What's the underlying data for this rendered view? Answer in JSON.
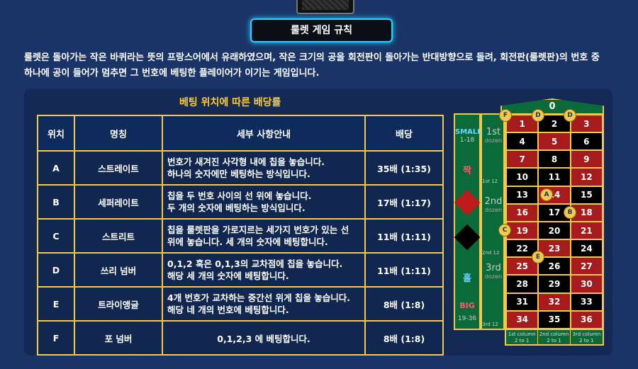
{
  "header": {
    "title": "룰렛 게임 규칙"
  },
  "intro": {
    "line1": "룰렛은 돌아가는 작은 바퀴라는 뜻의 프랑스어에서 유래하였으며, 작은 크기의 공을 회전판이 돌아가는 반대방향으로 돌려, 회전판(룰렛판)의 번호 중",
    "line2": "하나에 공이 들어가 멈추면 그 번호에 베팅한 플레이어가 이기는 게임입니다."
  },
  "table": {
    "title": "베팅 위치에 따른 배당률",
    "headers": [
      "위치",
      "명칭",
      "세부 사항안내",
      "배당"
    ],
    "rows": [
      {
        "pos": "A",
        "name": "스트레이트",
        "desc1": "번호가 새겨진 사각형 내에 칩을 놓습니다.",
        "desc2": "하나의 숫자에만 베팅하는 방식입니다.",
        "payout": "35배 (1:35)"
      },
      {
        "pos": "B",
        "name": "세퍼레이트",
        "desc1": "칩을 두 번호 사이의 선 위에 놓습니다.",
        "desc2": "두 개의 숫자에 베팅하는 방식입니다.",
        "payout": "17배 (1:17)"
      },
      {
        "pos": "C",
        "name": "스트리트",
        "desc1": "칩을 룰렛판을 가로지르는 세가지 번호가 있는 선",
        "desc2": "위에 놓습니다. 세 개의 숫자에 베팅합니다.",
        "payout": "11배 (1:11)"
      },
      {
        "pos": "D",
        "name": "쓰리 넘버",
        "desc1": "0,1,2 혹은 0,1,3의 교차점에 칩을 놓습니다.",
        "desc2": "해당 세 개의 숫자에 베팅합니다.",
        "payout": "11배 (1:11)"
      },
      {
        "pos": "E",
        "name": "트라이앵글",
        "desc1": "4개 번호가 교차하는 중간선 위게 칩을 놓습니다.",
        "desc2": "해당 네 개의 번호에 베팅합니다.",
        "payout": "8배 (1:8)"
      },
      {
        "pos": "F",
        "name": "포 넘버",
        "desc1": "0,1,2,3 에 베팅합니다.",
        "desc2": "",
        "payout": "8배 (1:8)"
      }
    ]
  },
  "board": {
    "zero": "0",
    "cells": [
      {
        "n": "1",
        "c": "red"
      },
      {
        "n": "2",
        "c": "black"
      },
      {
        "n": "3",
        "c": "red"
      },
      {
        "n": "4",
        "c": "black"
      },
      {
        "n": "5",
        "c": "red"
      },
      {
        "n": "6",
        "c": "black"
      },
      {
        "n": "7",
        "c": "red"
      },
      {
        "n": "8",
        "c": "black"
      },
      {
        "n": "9",
        "c": "red"
      },
      {
        "n": "10",
        "c": "black"
      },
      {
        "n": "11",
        "c": "black"
      },
      {
        "n": "12",
        "c": "red"
      },
      {
        "n": "13",
        "c": "black"
      },
      {
        "n": "14",
        "c": "red"
      },
      {
        "n": "15",
        "c": "black"
      },
      {
        "n": "16",
        "c": "red"
      },
      {
        "n": "17",
        "c": "black"
      },
      {
        "n": "18",
        "c": "red"
      },
      {
        "n": "19",
        "c": "red"
      },
      {
        "n": "20",
        "c": "black"
      },
      {
        "n": "21",
        "c": "red"
      },
      {
        "n": "22",
        "c": "black"
      },
      {
        "n": "23",
        "c": "red"
      },
      {
        "n": "24",
        "c": "black"
      },
      {
        "n": "25",
        "c": "red"
      },
      {
        "n": "26",
        "c": "black"
      },
      {
        "n": "27",
        "c": "red"
      },
      {
        "n": "28",
        "c": "black"
      },
      {
        "n": "29",
        "c": "black"
      },
      {
        "n": "30",
        "c": "red"
      },
      {
        "n": "31",
        "c": "black"
      },
      {
        "n": "32",
        "c": "red"
      },
      {
        "n": "33",
        "c": "black"
      },
      {
        "n": "34",
        "c": "red"
      },
      {
        "n": "35",
        "c": "black"
      },
      {
        "n": "36",
        "c": "red"
      }
    ],
    "small": "SMALL",
    "small_range": "1-18",
    "odd": "짝",
    "even": "홀",
    "big": "BIG",
    "big_range": "19-36",
    "dozen1": "1st",
    "dozen2": "2nd",
    "dozen3": "3rd",
    "dozen_word": "dozen",
    "dozen1_sub": "1st 12",
    "dozen2_sub": "2nd 12",
    "dozen3_sub": "3rd 12",
    "col1": "1st column",
    "col2": "2nd column",
    "col3": "3rd column",
    "col_ratio": "2 to 1",
    "markers": {
      "a": "A",
      "b": "B",
      "c": "C",
      "d": "D",
      "e": "E",
      "f": "F"
    },
    "colors": {
      "red": "#a61b1b",
      "black": "#000000",
      "felt": "#0a6a3a",
      "gold": "#f2c94c"
    }
  }
}
